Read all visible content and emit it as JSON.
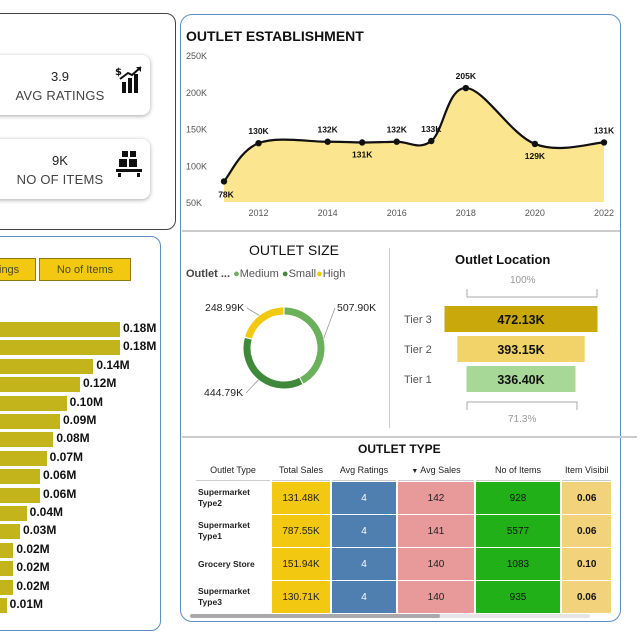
{
  "kpis": [
    {
      "value": "3.9",
      "label": "AVG RATINGS",
      "icon": "money-chart-icon"
    },
    {
      "value": "9K",
      "label": "NO OF ITEMS",
      "icon": "items-icon"
    }
  ],
  "buttons": {
    "ratings": "ings",
    "items": "No of Items"
  },
  "bar_labels": [
    "0.18M",
    "0.18M",
    "0.14M",
    "0.12M",
    "0.10M",
    "0.09M",
    "0.08M",
    "0.07M",
    "0.06M",
    "0.06M",
    "0.04M",
    "0.03M",
    "0.02M",
    "0.02M",
    "0.02M",
    "0.01M"
  ],
  "establishment": {
    "title": "OUTLET ESTABLISHMENT",
    "y_ticks": [
      "250K",
      "200K",
      "150K",
      "100K",
      "50K"
    ],
    "x_ticks": [
      "2012",
      "2014",
      "2016",
      "2018",
      "2020",
      "2022"
    ]
  },
  "outlet_size": {
    "title": "OUTLET SIZE",
    "legend_title": "Outlet ...",
    "legend": [
      {
        "name": "Medium",
        "color": "#6bb15c"
      },
      {
        "name": "Small",
        "color": "#3f8a3a"
      },
      {
        "name": "High",
        "color": "#f2c811"
      }
    ]
  },
  "outlet_location": {
    "title": "Outlet Location",
    "top_pct": "100%",
    "bottom_pct": "71.3%"
  },
  "outlet_type": {
    "title": "OUTLET TYPE",
    "columns": [
      "Outlet Type",
      "Total Sales",
      "Avg Ratings",
      "Avg Sales",
      "No of Items",
      "Item Visibil"
    ],
    "rows": [
      {
        "type": "Supermarket Type2",
        "sales": "131.48K",
        "rating": "4",
        "avg": "142",
        "items": "928",
        "vis": "0.06"
      },
      {
        "type": "Supermarket Type1",
        "sales": "787.55K",
        "rating": "4",
        "avg": "141",
        "items": "5577",
        "vis": "0.06"
      },
      {
        "type": "Grocery Store",
        "sales": "151.94K",
        "rating": "4",
        "avg": "140",
        "items": "1083",
        "vis": "0.10"
      },
      {
        "type": "Supermarket Type3",
        "sales": "130.71K",
        "rating": "4",
        "avg": "140",
        "items": "935",
        "vis": "0.06"
      }
    ]
  },
  "chart_data": [
    {
      "type": "area",
      "title": "OUTLET ESTABLISHMENT",
      "x": [
        2011,
        2012,
        2014,
        2015,
        2016,
        2017,
        2018,
        2020,
        2022
      ],
      "values": [
        78,
        130,
        132,
        131,
        132,
        133,
        205,
        129,
        131
      ],
      "labels": [
        "78K",
        "130K",
        "132K",
        "131K",
        "132K",
        "133K",
        "205K",
        "129K",
        "131K"
      ],
      "ylim": [
        50,
        250
      ],
      "xlim": [
        2011,
        2022
      ],
      "grid": false,
      "colors": {
        "fill": "#fbe58e",
        "line": "#111111"
      }
    },
    {
      "type": "pie",
      "title": "OUTLET SIZE",
      "categories": [
        "Medium",
        "Small",
        "High"
      ],
      "values": [
        507.9,
        444.79,
        248.99
      ],
      "labels": [
        "507.90K",
        "444.79K",
        "248.99K"
      ],
      "colors": [
        "#6bb15c",
        "#3f8a3a",
        "#f2c811"
      ]
    },
    {
      "type": "bar",
      "title": "Outlet Location",
      "categories": [
        "Tier 3",
        "Tier 2",
        "Tier 1"
      ],
      "values": [
        472.13,
        393.15,
        336.4
      ],
      "labels": [
        "472.13K",
        "393.15K",
        "336.40K"
      ],
      "colors": [
        "#c9a80c",
        "#f2d36a",
        "#a8d898"
      ]
    },
    {
      "type": "bar",
      "values": [
        0.18,
        0.18,
        0.14,
        0.12,
        0.1,
        0.09,
        0.08,
        0.07,
        0.06,
        0.06,
        0.04,
        0.03,
        0.02,
        0.02,
        0.02,
        0.01
      ],
      "labels": [
        "0.18M",
        "0.18M",
        "0.14M",
        "0.12M",
        "0.10M",
        "0.09M",
        "0.08M",
        "0.07M",
        "0.06M",
        "0.06M",
        "0.04M",
        "0.03M",
        "0.02M",
        "0.02M",
        "0.02M",
        "0.01M"
      ],
      "colors": {
        "bar": "#c2b41a"
      }
    }
  ]
}
